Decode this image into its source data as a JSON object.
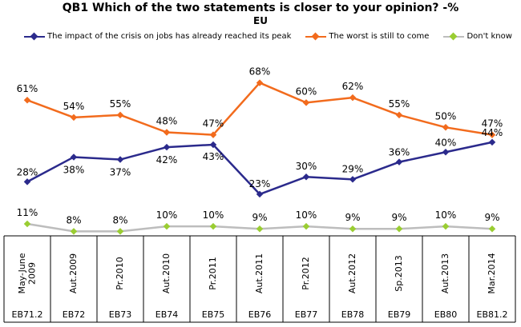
{
  "chart_data": {
    "type": "line",
    "title": "QB1 Which of the two statements is closer to your opinion? -%",
    "subtitle": "EU",
    "categories": [
      "May-June 2009",
      "Aut.2009",
      "Pr.2010",
      "Aut.2010",
      "Pr.2011",
      "Aut.2011",
      "Pr.2012",
      "Aut.2012",
      "Sp.2013",
      "Aut.2013",
      "Mar.2014"
    ],
    "waves": [
      "EB71.2",
      "EB72",
      "EB73",
      "EB74",
      "EB75",
      "EB76",
      "EB77",
      "EB78",
      "EB79",
      "EB80",
      "EB81.2"
    ],
    "series": [
      {
        "name": "The impact of the crisis on jobs has already reached its peak",
        "color": "#2b2a8c",
        "values": [
          28,
          38,
          37,
          42,
          43,
          23,
          30,
          29,
          36,
          40,
          44
        ]
      },
      {
        "name": "The worst is still to come",
        "color": "#f26b1d",
        "values": [
          61,
          54,
          55,
          48,
          47,
          68,
          60,
          62,
          55,
          50,
          47
        ]
      },
      {
        "name": "Don't know",
        "color": "#bdbdbd",
        "values": [
          11,
          8,
          8,
          10,
          10,
          9,
          10,
          9,
          9,
          10,
          9
        ]
      }
    ],
    "value_suffix": "%",
    "legend_position": "top",
    "grid": false,
    "marker_color_dont_know": "#9acd32"
  }
}
